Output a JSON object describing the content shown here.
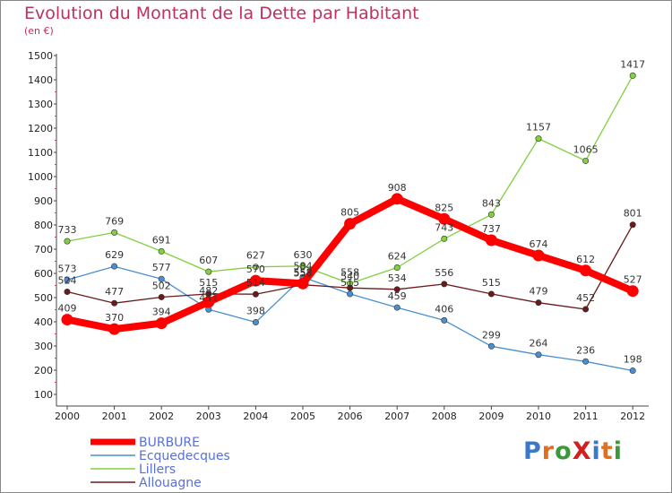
{
  "title": "Evolution du Montant de la Dette par Habitant",
  "subtitle": "(en €)",
  "logo_text": "ProXiti",
  "chart_data": {
    "type": "line",
    "title": "Evolution du Montant de la Dette par Habitant",
    "ylabel": "(en €)",
    "xlabel": "",
    "x": [
      "2000",
      "2001",
      "2002",
      "2003",
      "2004",
      "2005",
      "2006",
      "2007",
      "2008",
      "2009",
      "2010",
      "2011",
      "2012"
    ],
    "yticks": [
      100,
      200,
      300,
      400,
      500,
      600,
      700,
      800,
      900,
      1000,
      1100,
      1200,
      1300,
      1400,
      1500
    ],
    "ylim": [
      100,
      1500
    ],
    "grid": false,
    "legend_position": "bottom-left",
    "series": [
      {
        "name": "BURBURE",
        "color": "#ff0000",
        "values": [
          409,
          370,
          394,
          482,
          570,
          558,
          805,
          908,
          825,
          737,
          674,
          612,
          527
        ],
        "labels": [
          "409",
          "370",
          "394",
          "482",
          "570",
          "558",
          "805",
          "908",
          "825",
          "737",
          "674",
          "612",
          "527"
        ]
      },
      {
        "name": "Ecquedecques",
        "color": "#4a8fd0",
        "values": [
          573,
          629,
          577,
          451,
          398,
          584,
          515,
          459,
          406,
          299,
          264,
          236,
          198
        ],
        "labels": [
          "573",
          "629",
          "577",
          "451",
          "398",
          "584",
          "515",
          "459",
          "406",
          "299",
          "264",
          "236",
          "198"
        ]
      },
      {
        "name": "Lillers",
        "color": "#80d040",
        "values": [
          733,
          769,
          691,
          607,
          627,
          630,
          558,
          624,
          743,
          843,
          1157,
          1065,
          1417
        ],
        "labels": [
          "733",
          "769",
          "691",
          "607",
          "627",
          "630",
          "558",
          "624",
          "743",
          "843",
          "1157",
          "1065",
          "1417"
        ]
      },
      {
        "name": "Allouagne",
        "color": "#6b1a1a",
        "values": [
          524,
          477,
          502,
          515,
          514,
          553,
          540,
          534,
          556,
          515,
          479,
          452,
          801
        ],
        "labels": [
          "524",
          "477",
          "502",
          "515",
          "514",
          "553",
          "540",
          "534",
          "556",
          "515",
          "479",
          "452",
          "801"
        ]
      }
    ]
  }
}
